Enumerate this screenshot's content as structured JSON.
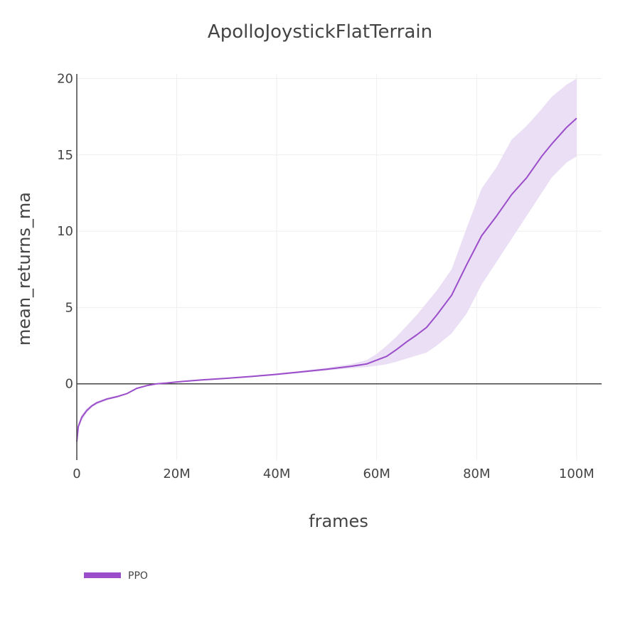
{
  "chart_data": {
    "type": "line",
    "title": "ApolloJoystickFlatTerrain",
    "xlabel": "frames",
    "ylabel": "mean_returns_ma",
    "xlim": [
      0,
      105000000
    ],
    "ylim": [
      -5,
      20.3
    ],
    "x_ticks": [
      0,
      20000000,
      40000000,
      60000000,
      80000000,
      100000000
    ],
    "x_tick_labels": [
      "0",
      "20M",
      "40M",
      "60M",
      "80M",
      "100M"
    ],
    "y_ticks": [
      0,
      5,
      10,
      15,
      20
    ],
    "y_tick_labels": [
      "0",
      "5",
      "10",
      "15",
      "20"
    ],
    "grid": true,
    "legend_position": "bottom-left",
    "series": [
      {
        "name": "PPO",
        "color": "#9b4dca",
        "band_color": "#e8dcf4",
        "x": [
          0,
          300000,
          1000000,
          2000000,
          3000000,
          4000000,
          6000000,
          8000000,
          10000000,
          12000000,
          14000000,
          16000000,
          18000000,
          20000000,
          25000000,
          30000000,
          35000000,
          40000000,
          45000000,
          50000000,
          55000000,
          58000000,
          60000000,
          62000000,
          64000000,
          66000000,
          68000000,
          70000000,
          72000000,
          75000000,
          78000000,
          81000000,
          84000000,
          87000000,
          90000000,
          93000000,
          95000000,
          98000000,
          100000000
        ],
        "y": [
          -3.8,
          -2.8,
          -2.2,
          -1.75,
          -1.45,
          -1.25,
          -1.0,
          -0.85,
          -0.65,
          -0.3,
          -0.12,
          0.0,
          0.05,
          0.12,
          0.25,
          0.36,
          0.48,
          0.62,
          0.78,
          0.95,
          1.15,
          1.3,
          1.55,
          1.8,
          2.25,
          2.75,
          3.2,
          3.7,
          4.5,
          5.8,
          7.8,
          9.7,
          11.0,
          12.4,
          13.5,
          14.9,
          15.7,
          16.8,
          17.4
        ],
        "y_upper": [
          -3.8,
          -2.6,
          -2.0,
          -1.6,
          -1.35,
          -1.15,
          -0.92,
          -0.78,
          -0.6,
          -0.25,
          -0.08,
          0.03,
          0.08,
          0.16,
          0.3,
          0.41,
          0.53,
          0.68,
          0.85,
          1.05,
          1.3,
          1.55,
          1.95,
          2.5,
          3.1,
          3.8,
          4.5,
          5.3,
          6.1,
          7.5,
          10.2,
          12.8,
          14.2,
          16.0,
          16.9,
          18.0,
          18.8,
          19.6,
          20.0
        ],
        "y_lower": [
          -3.8,
          -3.0,
          -2.4,
          -1.9,
          -1.55,
          -1.35,
          -1.08,
          -0.92,
          -0.7,
          -0.35,
          -0.16,
          -0.03,
          0.02,
          0.08,
          0.2,
          0.31,
          0.43,
          0.56,
          0.71,
          0.87,
          1.02,
          1.1,
          1.18,
          1.28,
          1.45,
          1.65,
          1.85,
          2.05,
          2.5,
          3.3,
          4.6,
          6.5,
          8.0,
          9.5,
          11.0,
          12.5,
          13.5,
          14.5,
          14.9
        ]
      }
    ]
  }
}
